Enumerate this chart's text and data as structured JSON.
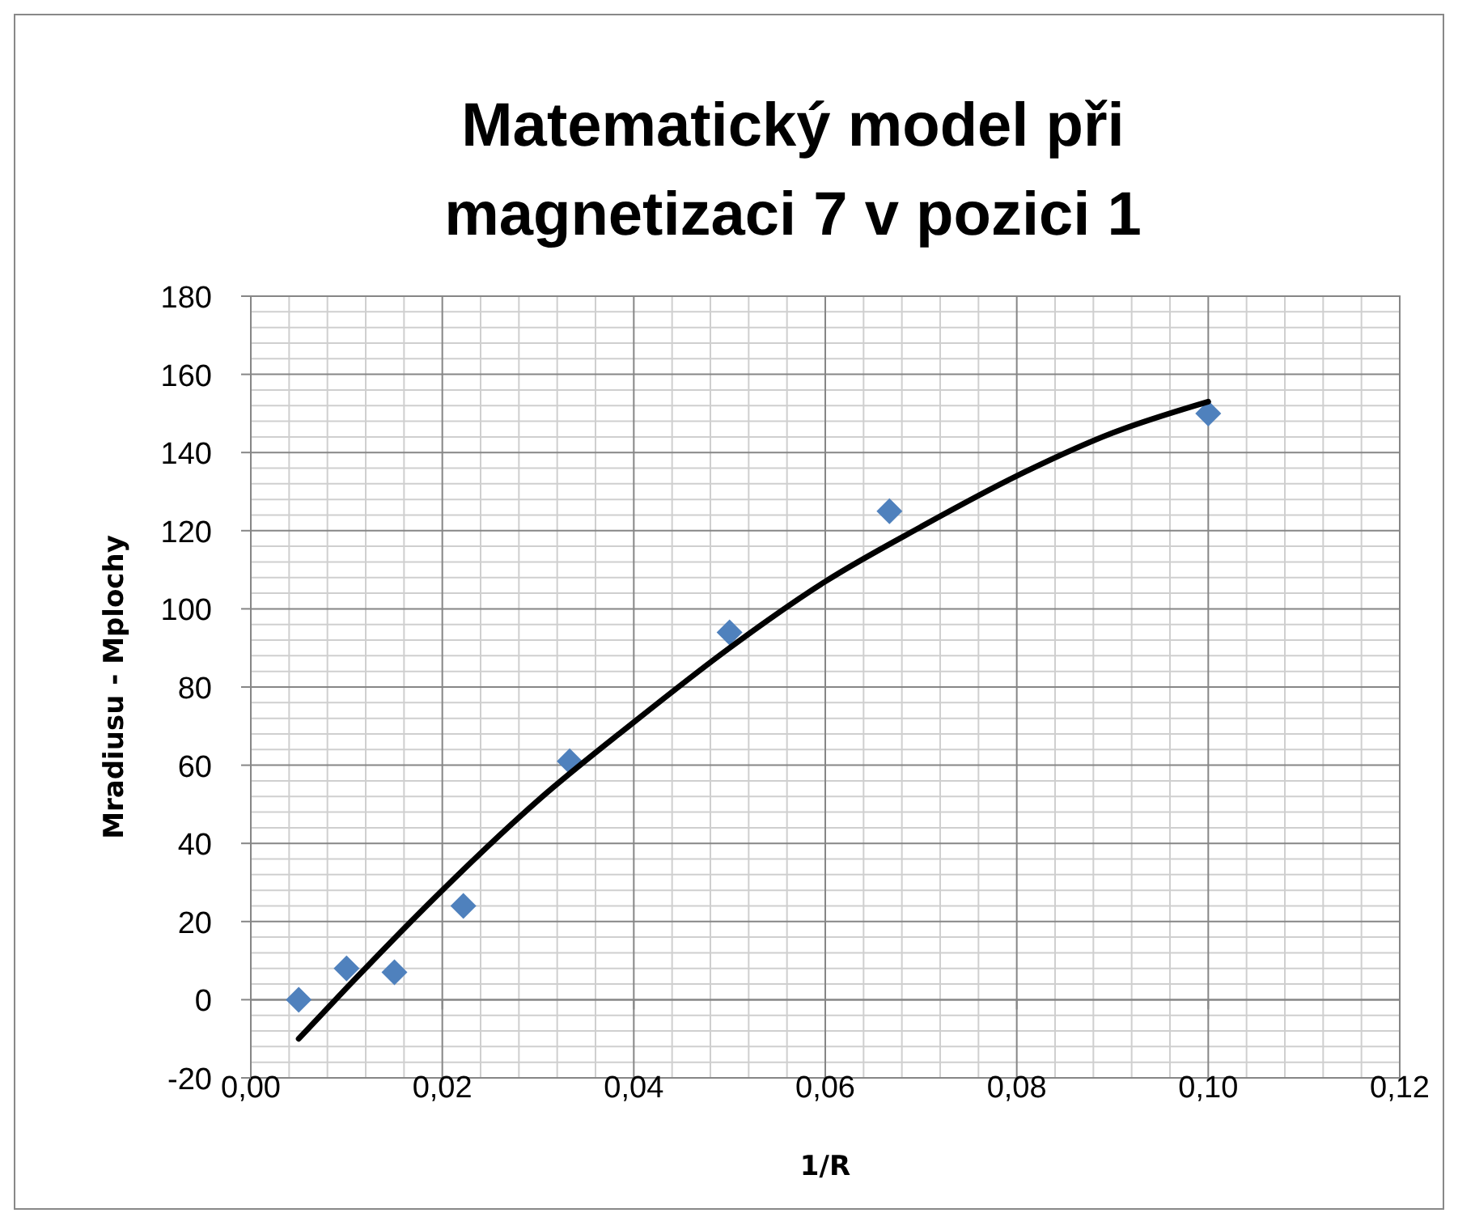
{
  "chart_data": {
    "type": "scatter",
    "title": "Matematický model při magnetizaci 7 v pozici 1",
    "xlabel": "1/R",
    "ylabel": "Mradiusu - Mplochy",
    "xlim": [
      0,
      0.12
    ],
    "ylim": [
      -20,
      180
    ],
    "xticks": [
      {
        "value": 0,
        "label": "0,00"
      },
      {
        "value": 0.02,
        "label": "0,02"
      },
      {
        "value": 0.04,
        "label": "0,04"
      },
      {
        "value": 0.06,
        "label": "0,06"
      },
      {
        "value": 0.08,
        "label": "0,08"
      },
      {
        "value": 0.1,
        "label": "0,10"
      },
      {
        "value": 0.12,
        "label": "0,12"
      }
    ],
    "yticks": [
      -20,
      0,
      20,
      40,
      60,
      80,
      100,
      120,
      140,
      160,
      180
    ],
    "grid": true,
    "series": [
      {
        "color": "#4f81bd",
        "marker": "diamond",
        "x": [
          0.005,
          0.01,
          0.015,
          0.0222,
          0.0333,
          0.05,
          0.0667,
          0.1
        ],
        "values": [
          0,
          8,
          7,
          24,
          61,
          94,
          125,
          150
        ]
      },
      {
        "type": "line",
        "color": "#000000",
        "marker": "none",
        "line_style": "solid",
        "x": [
          0.005,
          0.01,
          0.02,
          0.03,
          0.04,
          0.05,
          0.06,
          0.07,
          0.08,
          0.09,
          0.1
        ],
        "values": [
          -10,
          3,
          28,
          51,
          71,
          90,
          107,
          121,
          134,
          145,
          153
        ]
      }
    ]
  }
}
